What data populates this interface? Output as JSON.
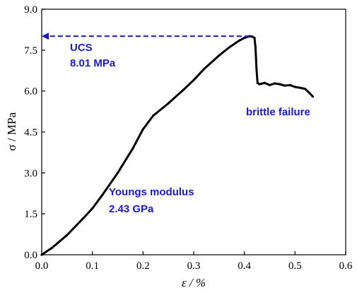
{
  "chart_data": {
    "type": "line",
    "title": "",
    "xlabel": "ε / %",
    "ylabel": "σ / MPa",
    "xlim": [
      0.0,
      0.6
    ],
    "ylim": [
      0.0,
      9.0
    ],
    "xticks": [
      "0.0",
      "0.1",
      "0.2",
      "0.3",
      "0.4",
      "0.5",
      "0.6"
    ],
    "yticks": [
      "0.0",
      "1.5",
      "3.0",
      "4.5",
      "6.0",
      "7.5",
      "9.0"
    ],
    "grid": false,
    "series": [
      {
        "color": "#000000",
        "x": [
          0.0,
          0.02,
          0.05,
          0.08,
          0.1,
          0.12,
          0.15,
          0.18,
          0.2,
          0.22,
          0.25,
          0.28,
          0.3,
          0.32,
          0.35,
          0.37,
          0.39,
          0.4,
          0.41,
          0.415,
          0.42,
          0.422,
          0.424,
          0.426,
          0.43,
          0.44,
          0.45,
          0.46,
          0.47,
          0.48,
          0.49,
          0.5,
          0.51,
          0.52,
          0.53,
          0.535
        ],
        "y": [
          0.0,
          0.25,
          0.72,
          1.3,
          1.7,
          2.2,
          3.0,
          3.9,
          4.6,
          5.1,
          5.55,
          6.05,
          6.4,
          6.8,
          7.3,
          7.6,
          7.85,
          7.95,
          8.01,
          8.0,
          7.95,
          7.6,
          6.8,
          6.3,
          6.25,
          6.3,
          6.22,
          6.28,
          6.25,
          6.2,
          6.22,
          6.15,
          6.12,
          6.08,
          5.9,
          5.8
        ]
      }
    ],
    "annotations": {
      "ucs_label": "UCS",
      "ucs_value": "8.01 MPa",
      "failure_label": "brittle failure",
      "modulus_label": "Youngs modulus",
      "modulus_value": "2.43 GPa"
    },
    "ucs_arrow": {
      "x_from": 0.41,
      "x_to": 0.0,
      "y": 8.01,
      "color": "#1a1ad4"
    }
  }
}
